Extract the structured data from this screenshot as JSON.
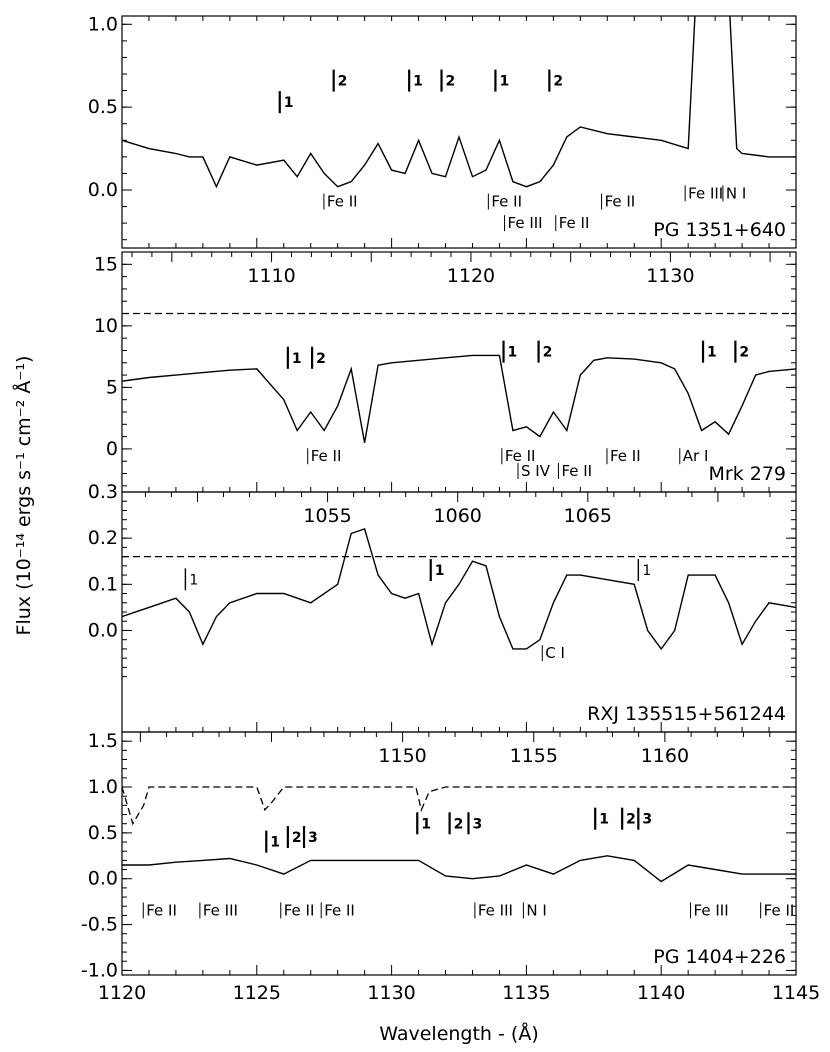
{
  "chart_data": {
    "type": "line",
    "xlabel": "Wavelength - (Å)",
    "ylabel": "Flux (10⁻¹⁴ ergs s⁻¹ cm⁻² Å⁻¹)",
    "x_ticks": [
      "1120",
      "1125",
      "1130",
      "1135",
      "1140",
      "1145"
    ],
    "xlim": [
      1120,
      1145
    ],
    "panels": [
      {
        "object": "PG 1351+640",
        "ylim": [
          -0.35,
          1.05
        ],
        "y_ticks": [
          "0.0",
          "0.5",
          "1.0"
        ],
        "top_xlim": [
          1120,
          1145
        ],
        "top_ticks": [],
        "spectrum": {
          "x": [
            1120,
            1121,
            1122,
            1122.5,
            1123,
            1123.5,
            1124,
            1125,
            1126,
            1126.5,
            1127,
            1127.5,
            1128,
            1128.5,
            1129,
            1129.5,
            1130,
            1130.5,
            1131,
            1131.5,
            1132,
            1132.5,
            1133,
            1133.5,
            1134,
            1134.5,
            1135,
            1135.5,
            1136,
            1136.5,
            1137,
            1137.5,
            1138,
            1139,
            1140,
            1141,
            1141.3,
            1141.6,
            1141.9,
            1142.2,
            1142.5,
            1142.8,
            1143,
            1144,
            1145
          ],
          "y": [
            0.3,
            0.25,
            0.22,
            0.2,
            0.2,
            0.02,
            0.2,
            0.15,
            0.18,
            0.08,
            0.22,
            0.1,
            0.02,
            0.05,
            0.15,
            0.28,
            0.12,
            0.1,
            0.3,
            0.1,
            0.08,
            0.32,
            0.08,
            0.12,
            0.3,
            0.05,
            0.02,
            0.05,
            0.15,
            0.32,
            0.38,
            0.36,
            0.34,
            0.32,
            0.3,
            0.25,
            1.2,
            1.2,
            1.2,
            1.2,
            1.2,
            0.25,
            0.22,
            0.2,
            0.2
          ]
        },
        "continuum": null,
        "annotations": [
          {
            "text": "1",
            "x": 1126.0,
            "y": 0.5,
            "bold": true
          },
          {
            "text": "2",
            "x": 1128.0,
            "y": 0.63,
            "bold": true
          },
          {
            "text": "1",
            "x": 1130.8,
            "y": 0.63,
            "bold": true
          },
          {
            "text": "2",
            "x": 1132.0,
            "y": 0.63,
            "bold": true
          },
          {
            "text": "1",
            "x": 1134.0,
            "y": 0.63,
            "bold": true
          },
          {
            "text": "2",
            "x": 1136.0,
            "y": 0.63,
            "bold": true
          }
        ],
        "identifications": [
          {
            "text": "Fe II",
            "x": 1127.6,
            "y": -0.1
          },
          {
            "text": "Fe II",
            "x": 1133.7,
            "y": -0.1
          },
          {
            "text": "Fe III",
            "x": 1134.3,
            "y": -0.23
          },
          {
            "text": "Fe II",
            "x": 1136.2,
            "y": -0.23
          },
          {
            "text": "Fe II",
            "x": 1137.9,
            "y": -0.1
          },
          {
            "text": "Fe III",
            "x": 1141.0,
            "y": -0.05
          },
          {
            "text": "N I",
            "x": 1142.4,
            "y": -0.05
          }
        ]
      },
      {
        "object": "Mrk 279",
        "ylim": [
          -3.5,
          16.0
        ],
        "y_ticks": [
          "0",
          "5",
          "10",
          "15"
        ],
        "top_xlim": [
          1102.5,
          1136.3
        ],
        "top_ticks": [
          "1110",
          "1120",
          "1130"
        ],
        "spectrum": {
          "x": [
            1120,
            1121,
            1122,
            1123,
            1124,
            1125,
            1126,
            1126.5,
            1127,
            1127.5,
            1128,
            1128.5,
            1129,
            1129.5,
            1130,
            1131,
            1132,
            1133,
            1134,
            1134.5,
            1135,
            1135.5,
            1136,
            1136.5,
            1137,
            1137.5,
            1138,
            1139,
            1140,
            1140.5,
            1141,
            1141.5,
            1142,
            1142.5,
            1143,
            1143.5,
            1144,
            1145
          ],
          "y": [
            5.5,
            5.8,
            6.0,
            6.2,
            6.4,
            6.5,
            4.0,
            1.5,
            3.0,
            1.5,
            3.5,
            6.5,
            0.5,
            6.8,
            7.0,
            7.2,
            7.4,
            7.6,
            7.6,
            1.5,
            1.8,
            1.0,
            3.0,
            1.5,
            6.0,
            7.2,
            7.4,
            7.3,
            7.0,
            6.5,
            4.5,
            1.5,
            2.2,
            1.2,
            3.5,
            6.0,
            6.3,
            6.5
          ]
        },
        "continuum": {
          "x": [
            1120,
            1121,
            1122,
            1123,
            1124,
            1125,
            1125.3,
            1127.2,
            1128.2,
            1131,
            1132,
            1133,
            1134,
            1135,
            1136,
            1137,
            1138,
            1139,
            1140,
            1141,
            1142,
            1143,
            1144,
            1145
          ],
          "y": [
            11,
            11,
            11,
            11,
            11,
            11,
            11,
            11,
            11,
            11,
            11,
            11,
            11,
            11,
            11,
            11,
            11,
            11,
            11,
            11,
            11,
            11,
            11,
            11
          ]
        },
        "annotations": [
          {
            "text": "1",
            "x": 1126.3,
            "y": 7.0,
            "bold": true
          },
          {
            "text": "2",
            "x": 1127.2,
            "y": 7.0,
            "bold": true
          },
          {
            "text": "1",
            "x": 1134.3,
            "y": 7.5,
            "bold": true
          },
          {
            "text": "2",
            "x": 1135.6,
            "y": 7.5,
            "bold": true
          },
          {
            "text": "1",
            "x": 1141.7,
            "y": 7.5,
            "bold": true
          },
          {
            "text": "2",
            "x": 1142.9,
            "y": 7.5,
            "bold": true
          }
        ],
        "identifications": [
          {
            "text": "Fe II",
            "x": 1127.0,
            "y": -1.0
          },
          {
            "text": "Fe II",
            "x": 1134.2,
            "y": -1.0
          },
          {
            "text": "S IV",
            "x": 1134.8,
            "y": -2.2
          },
          {
            "text": "Fe II",
            "x": 1136.3,
            "y": -2.2
          },
          {
            "text": "Fe II",
            "x": 1138.1,
            "y": -1.0
          },
          {
            "text": "Ar I",
            "x": 1140.8,
            "y": -1.0
          }
        ]
      },
      {
        "object": "RXJ 135515+561244",
        "ylim": [
          -0.22,
          0.3
        ],
        "y_ticks": [
          "0.0",
          "0.1",
          "0.2",
          "0.3"
        ],
        "top_xlim": [
          1047.1,
          1073.0
        ],
        "top_ticks": [
          "1055",
          "1060",
          "1065"
        ],
        "spectrum": {
          "x": [
            1120,
            1121,
            1122,
            1122.5,
            1123,
            1123.5,
            1124,
            1125,
            1126,
            1127,
            1128,
            1128.5,
            1129,
            1129.5,
            1130,
            1130.5,
            1131,
            1131.5,
            1132,
            1132.5,
            1133,
            1133.5,
            1134,
            1134.5,
            1135,
            1135.5,
            1136,
            1136.5,
            1137,
            1138,
            1139,
            1139.5,
            1140,
            1140.5,
            1141,
            1142,
            1142.5,
            1143,
            1143.5,
            1144,
            1145
          ],
          "y": [
            0.03,
            0.05,
            0.07,
            0.04,
            -0.03,
            0.03,
            0.06,
            0.08,
            0.08,
            0.06,
            0.1,
            0.21,
            0.22,
            0.12,
            0.08,
            0.07,
            0.08,
            -0.03,
            0.06,
            0.1,
            0.15,
            0.14,
            0.03,
            -0.04,
            -0.04,
            -0.02,
            0.06,
            0.12,
            0.12,
            0.11,
            0.1,
            0.0,
            -0.04,
            0.0,
            0.12,
            0.12,
            0.06,
            -0.03,
            0.02,
            0.06,
            0.05
          ]
        },
        "continuum": {
          "x": [
            1120,
            1145
          ],
          "y": [
            0.16,
            0.16
          ]
        },
        "annotations": [
          {
            "text": "1",
            "x": 1122.5,
            "y": 0.1,
            "bold": false
          },
          {
            "text": "1",
            "x": 1131.6,
            "y": 0.12,
            "bold": true
          },
          {
            "text": "1",
            "x": 1139.3,
            "y": 0.12,
            "bold": false
          }
        ],
        "identifications": [
          {
            "text": "C I",
            "x": 1135.7,
            "y": -0.06
          }
        ]
      },
      {
        "object": "PG 1404+226",
        "ylim": [
          -1.05,
          1.6
        ],
        "y_ticks": [
          "-1.0",
          "-0.5",
          "0.0",
          "0.5",
          "1.0",
          "1.5"
        ],
        "top_xlim": [
          1139.3,
          1165.0
        ],
        "top_ticks": [
          "1150",
          "1155",
          "1160"
        ],
        "spectrum": {
          "x": [
            1120,
            1121,
            1122,
            1123,
            1124,
            1125,
            1126,
            1127,
            1128,
            1129,
            1130,
            1131,
            1132,
            1133,
            1134,
            1135,
            1136,
            1137,
            1138,
            1139,
            1140,
            1141,
            1142,
            1143,
            1144,
            1145
          ],
          "y": [
            0.15,
            0.15,
            0.18,
            0.2,
            0.22,
            0.15,
            0.05,
            0.2,
            0.2,
            0.2,
            0.2,
            0.2,
            0.03,
            0.0,
            0.03,
            0.15,
            0.05,
            0.2,
            0.25,
            0.2,
            -0.03,
            0.15,
            0.1,
            0.05,
            0.05,
            0.05
          ]
        },
        "continuum": {
          "x": [
            1120,
            1120.4,
            1120.8,
            1121,
            1122,
            1123,
            1124,
            1125,
            1125.3,
            1125.6,
            1126,
            1127,
            1128,
            1129,
            1130,
            1130.9,
            1131.1,
            1131.4,
            1132,
            1134,
            1136,
            1138,
            1140,
            1142,
            1144,
            1145
          ],
          "y": [
            1.0,
            0.6,
            0.8,
            1.0,
            1.0,
            1.0,
            1.0,
            1.0,
            0.75,
            0.85,
            1.0,
            1.0,
            1.0,
            1.0,
            1.0,
            1.0,
            0.75,
            0.95,
            1.0,
            1.0,
            1.0,
            1.0,
            1.0,
            1.0,
            1.0,
            1.0
          ]
        },
        "annotations": [
          {
            "text": "1",
            "x": 1125.5,
            "y": 0.35,
            "bold": true
          },
          {
            "text": "2",
            "x": 1126.3,
            "y": 0.4,
            "bold": true
          },
          {
            "text": "3",
            "x": 1126.9,
            "y": 0.4,
            "bold": true
          },
          {
            "text": "1",
            "x": 1131.1,
            "y": 0.55,
            "bold": true
          },
          {
            "text": "2",
            "x": 1132.3,
            "y": 0.55,
            "bold": true
          },
          {
            "text": "3",
            "x": 1133.0,
            "y": 0.55,
            "bold": true
          },
          {
            "text": "1",
            "x": 1137.7,
            "y": 0.6,
            "bold": true
          },
          {
            "text": "2",
            "x": 1138.7,
            "y": 0.6,
            "bold": true
          },
          {
            "text": "3",
            "x": 1139.3,
            "y": 0.6,
            "bold": true
          }
        ],
        "identifications": [
          {
            "text": "Fe II",
            "x": 1120.9,
            "y": -0.4
          },
          {
            "text": "Fe III",
            "x": 1123.0,
            "y": -0.4
          },
          {
            "text": "Fe II",
            "x": 1126.0,
            "y": -0.4
          },
          {
            "text": "Fe II",
            "x": 1127.5,
            "y": -0.4
          },
          {
            "text": "Fe III",
            "x": 1133.2,
            "y": -0.4
          },
          {
            "text": "N I",
            "x": 1135.0,
            "y": -0.4
          },
          {
            "text": "Fe III",
            "x": 1141.2,
            "y": -0.4
          },
          {
            "text": "Fe II",
            "x": 1143.8,
            "y": -0.4
          }
        ]
      }
    ]
  }
}
